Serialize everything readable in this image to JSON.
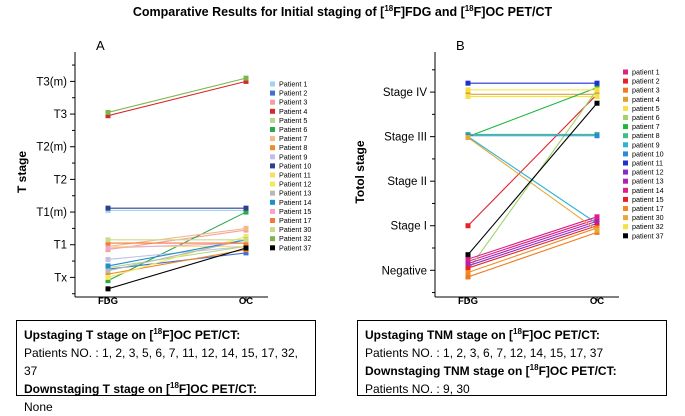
{
  "title": {
    "pre": "Comparative Results for Initial staging of [",
    "sup1": "18",
    "mid": "F]FDG and [",
    "sup2": "18",
    "post": "F]OC PET/CT"
  },
  "chart_data": [
    {
      "panel": "A",
      "type": "line",
      "ylabel": "T stage",
      "categories": [
        "FDG",
        "OC"
      ],
      "ticks": [
        "Tx",
        "T1",
        "T1(m)",
        "T2",
        "T2(m)",
        "T3",
        "T3(m)"
      ],
      "ylim": [
        -0.6,
        6.9
      ],
      "series": [
        {
          "name": "Patient 1",
          "color": "#9fd4f0",
          "values": [
            2.05,
            2.05
          ]
        },
        {
          "name": "Patient 2",
          "color": "#3f6fd1",
          "values": [
            0.25,
            0.75
          ]
        },
        {
          "name": "Patient 3",
          "color": "#f2a0a8",
          "values": [
            0.85,
            1.45
          ]
        },
        {
          "name": "Patient 4",
          "color": "#d42a2a",
          "values": [
            4.95,
            6.0
          ]
        },
        {
          "name": "Patient 5",
          "color": "#b4d98c",
          "values": [
            0.3,
            0.95
          ]
        },
        {
          "name": "Patient 6",
          "color": "#2da84b",
          "values": [
            -0.1,
            2.0
          ]
        },
        {
          "name": "Patient 7",
          "color": "#f5b88a",
          "values": [
            0.95,
            1.5
          ]
        },
        {
          "name": "Patient 8",
          "color": "#f08a24",
          "values": [
            0.1,
            0.85
          ]
        },
        {
          "name": "Patient 9",
          "color": "#c5bde6",
          "values": [
            0.55,
            0.95
          ]
        },
        {
          "name": "Patient 10",
          "color": "#2e3f8f",
          "values": [
            2.12,
            2.12
          ]
        },
        {
          "name": "Patient 11",
          "color": "#f7df66",
          "values": [
            0.95,
            0.95
          ]
        },
        {
          "name": "Patient 12",
          "color": "#f2e85a",
          "values": [
            0.0,
            1.25
          ]
        },
        {
          "name": "Patient 13",
          "color": "#b8b8b8",
          "values": [
            0.2,
            1.15
          ]
        },
        {
          "name": "Patient 14",
          "color": "#1e90c8",
          "values": [
            0.35,
            1.15
          ]
        },
        {
          "name": "Patient 15",
          "color": "#f3a6c8",
          "values": [
            0.9,
            1.05
          ]
        },
        {
          "name": "Patient 17",
          "color": "#f47a3a",
          "values": [
            1.05,
            1.05
          ]
        },
        {
          "name": "Patient 30",
          "color": "#c8dc8a",
          "values": [
            1.15,
            1.15
          ]
        },
        {
          "name": "Patient 32",
          "color": "#7ab648",
          "values": [
            5.05,
            6.1
          ]
        },
        {
          "name": "Patient 37",
          "color": "#000000",
          "values": [
            -0.35,
            0.9
          ]
        }
      ]
    },
    {
      "panel": "B",
      "type": "line",
      "ylabel": "Totol stage",
      "categories": [
        "FDG",
        "OC"
      ],
      "ticks": [
        "Negative",
        "Stage I",
        "Stage II",
        "Stage III",
        "Stage IV"
      ],
      "ylim": [
        -0.6,
        4.9
      ],
      "series": [
        {
          "name": "patient 1",
          "color": "#e0207a",
          "values": [
            0.2,
            1.15
          ]
        },
        {
          "name": "patient 2",
          "color": "#e8202a",
          "values": [
            1.0,
            3.95
          ]
        },
        {
          "name": "patient 3",
          "color": "#f07a20",
          "values": [
            -0.15,
            0.85
          ]
        },
        {
          "name": "patient 4",
          "color": "#e0a030",
          "values": [
            3.95,
            3.95
          ]
        },
        {
          "name": "patient 5",
          "color": "#f3e24a",
          "values": [
            3.9,
            3.9
          ]
        },
        {
          "name": "patient 6",
          "color": "#9ed46a",
          "values": [
            0.0,
            4.05
          ]
        },
        {
          "name": "patient 7",
          "color": "#1db83a",
          "values": [
            3.0,
            4.1
          ]
        },
        {
          "name": "patient 8",
          "color": "#3cbf8a",
          "values": [
            3.05,
            3.05
          ]
        },
        {
          "name": "patient 9",
          "color": "#2cb4d8",
          "values": [
            3.0,
            1.05
          ]
        },
        {
          "name": "patient 10",
          "color": "#2a8ad8",
          "values": [
            3.02,
            3.02
          ]
        },
        {
          "name": "patient 11",
          "color": "#2030d0",
          "values": [
            4.2,
            4.2
          ]
        },
        {
          "name": "patient 12",
          "color": "#8a28c8",
          "values": [
            0.1,
            1.05
          ]
        },
        {
          "name": "patient 13",
          "color": "#b020b8",
          "values": [
            0.15,
            1.1
          ]
        },
        {
          "name": "patient 14",
          "color": "#e01e8a",
          "values": [
            0.25,
            1.2
          ]
        },
        {
          "name": "patient 15",
          "color": "#e8202a",
          "values": [
            0.05,
            1.0
          ]
        },
        {
          "name": "patient 17",
          "color": "#f08a24",
          "values": [
            -0.05,
            0.95
          ]
        },
        {
          "name": "patient 30",
          "color": "#e8a838",
          "values": [
            2.98,
            0.9
          ]
        },
        {
          "name": "patient 32",
          "color": "#f5e040",
          "values": [
            4.05,
            4.05
          ]
        },
        {
          "name": "patient 37",
          "color": "#000000",
          "values": [
            0.35,
            3.75
          ]
        }
      ]
    }
  ],
  "box_a": {
    "line1_pre": "Upstaging T stage on [",
    "line1_sup": "18",
    "line1_post": "F]OC PET/CT:",
    "line2": "Patients NO. : 1, 2, 3, 5, 6, 7, 11, 12, 14, 15, 17, 32, 37",
    "line3_pre": "Downstaging T stage on [",
    "line3_sup": "18",
    "line3_post": "F]OC PET/CT:",
    "line4": "None"
  },
  "box_b": {
    "line1_pre": "Upstaging TNM stage on [",
    "line1_sup": "18",
    "line1_post": "F]OC PET/CT:",
    "line2": "Patients NO. : 1, 2, 3, 6, 7, 12, 14, 15, 17, 37",
    "line3_pre": "Downstaging TNM stage on [",
    "line3_sup": "18",
    "line3_post": "F]OC PET/CT:",
    "line4": "Patients NO. : 9, 30"
  }
}
